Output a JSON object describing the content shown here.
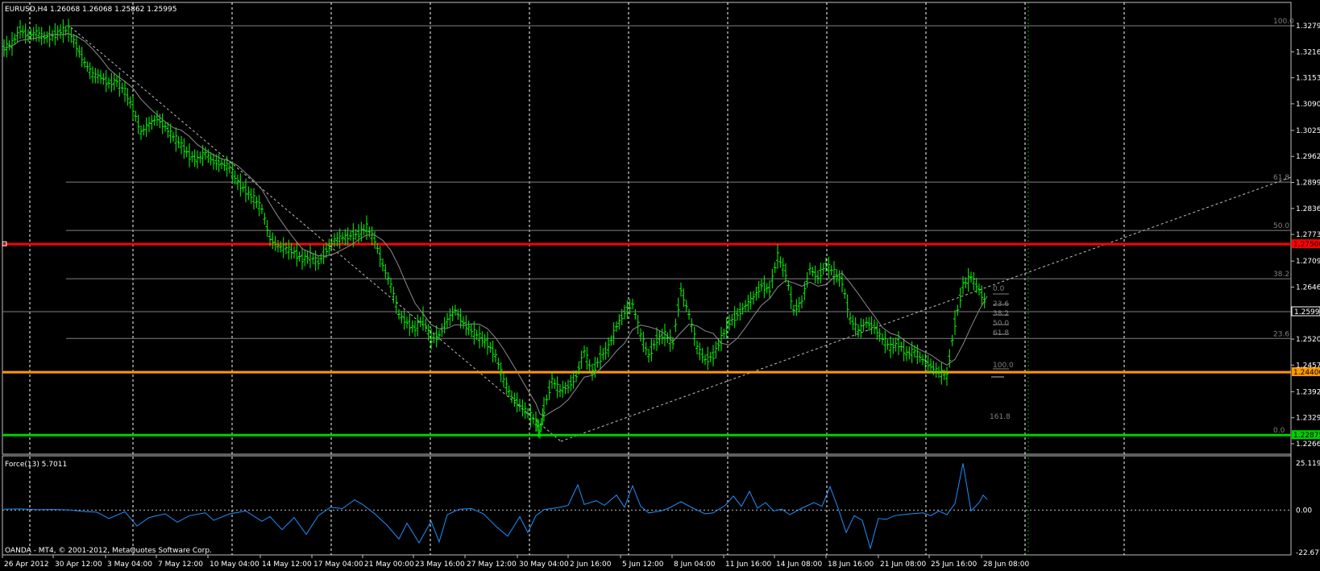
{
  "window": {
    "symbol_header": "EURUSD,H4  1.26068 1.26068 1.25862 1.25995",
    "indicator_header": "Force(13) 5.7011",
    "copyright": "OANDA - MT4, © 2001-2012, MetaQuotes Software Corp."
  },
  "colors": {
    "background": "#000000",
    "candles": "#00ff00",
    "ma_line": "#8c8c8c",
    "red_level": "#ff0000",
    "orange_level": "#ff9900",
    "green_level": "#00d000",
    "force_line": "#1e90ff",
    "grid": "#ffffff",
    "fib": "#7f7f7f"
  },
  "price_axis": {
    "ticks": [
      "1.32790",
      "1.32160",
      "1.31530",
      "1.30900",
      "1.30255",
      "1.29625",
      "1.28995",
      "1.28365",
      "1.27735",
      "1.27090",
      "1.26460",
      "1.25830",
      "1.25200",
      "1.24570",
      "1.23925",
      "1.23295",
      "1.22665"
    ],
    "current_price": "1.25995",
    "levels": [
      {
        "name": "red-level",
        "label": "1.27500",
        "value": 1.275,
        "color": "#ff0000"
      },
      {
        "name": "orange-level",
        "label": "1.24400",
        "value": 1.244,
        "color": "#ff9900"
      },
      {
        "name": "green-level",
        "label": "1.22875",
        "value": 1.22875,
        "color": "#00d000"
      }
    ]
  },
  "force_axis": {
    "ticks": [
      "25.1195",
      "0.00",
      "-22.6774"
    ]
  },
  "time_axis": {
    "labels": [
      "26 Apr 2012",
      "30 Apr 12:00",
      "3 May 04:00",
      "7 May 12:00",
      "10 May 04:00",
      "14 May 12:00",
      "17 May 04:00",
      "21 May 00:00",
      "23 May 16:00",
      "27 May 12:00",
      "30 May 04:00",
      "2 Jun 16:00",
      "5 Jun 12:00",
      "8 Jun 04:00",
      "11 Jun 16:00",
      "14 Jun 08:00",
      "18 Jun 16:00",
      "21 Jun 08:00",
      "25 Jun 16:00",
      "28 Jun 08:00"
    ]
  },
  "fib_big": [
    "100.0",
    "61.8",
    "50.0",
    "38.2",
    "23.6",
    "0.0"
  ],
  "fib_small": [
    "0.0",
    "23.6",
    "38.2",
    "50.0",
    "61.8",
    "100.0",
    "161.8"
  ],
  "chart_data": {
    "type": "line",
    "title": "EURUSD,H4",
    "close_series": [
      [
        0,
        1.3225
      ],
      [
        10,
        1.3235
      ],
      [
        20,
        1.327
      ],
      [
        30,
        1.3255
      ],
      [
        40,
        1.3262
      ],
      [
        50,
        1.325
      ],
      [
        60,
        1.3255
      ],
      [
        70,
        1.3265
      ],
      [
        80,
        1.3268
      ],
      [
        90,
        1.323
      ],
      [
        100,
        1.319
      ],
      [
        110,
        1.316
      ],
      [
        120,
        1.3155
      ],
      [
        130,
        1.314
      ],
      [
        140,
        1.3145
      ],
      [
        150,
        1.312
      ],
      [
        160,
        1.308
      ],
      [
        170,
        1.302
      ],
      [
        180,
        1.304
      ],
      [
        190,
        1.3055
      ],
      [
        200,
        1.3035
      ],
      [
        210,
        1.301
      ],
      [
        220,
        1.299
      ],
      [
        230,
        1.2965
      ],
      [
        240,
        1.2955
      ],
      [
        250,
        1.297
      ],
      [
        260,
        1.295
      ],
      [
        270,
        1.2945
      ],
      [
        280,
        1.2935
      ],
      [
        290,
        1.29
      ],
      [
        300,
        1.288
      ],
      [
        310,
        1.286
      ],
      [
        320,
        1.2835
      ],
      [
        330,
        1.2765
      ],
      [
        340,
        1.2745
      ],
      [
        350,
        1.274
      ],
      [
        360,
        1.273
      ],
      [
        370,
        1.2715
      ],
      [
        380,
        1.272
      ],
      [
        390,
        1.2705
      ],
      [
        400,
        1.2735
      ],
      [
        410,
        1.276
      ],
      [
        420,
        1.2765
      ],
      [
        430,
        1.277
      ],
      [
        440,
        1.2775
      ],
      [
        450,
        1.279
      ],
      [
        460,
        1.276
      ],
      [
        470,
        1.27
      ],
      [
        480,
        1.265
      ],
      [
        490,
        1.258
      ],
      [
        500,
        1.256
      ],
      [
        510,
        1.2545
      ],
      [
        520,
        1.257
      ],
      [
        530,
        1.252
      ],
      [
        540,
        1.253
      ],
      [
        550,
        1.2565
      ],
      [
        560,
        1.259
      ],
      [
        570,
        1.256
      ],
      [
        580,
        1.254
      ],
      [
        590,
        1.2525
      ],
      [
        600,
        1.251
      ],
      [
        610,
        1.248
      ],
      [
        620,
        1.242
      ],
      [
        630,
        1.238
      ],
      [
        640,
        1.236
      ],
      [
        650,
        1.234
      ],
      [
        660,
        1.232
      ],
      [
        665,
        1.2295
      ],
      [
        670,
        1.235
      ],
      [
        680,
        1.242
      ],
      [
        690,
        1.2395
      ],
      [
        700,
        1.2405
      ],
      [
        710,
        1.243
      ],
      [
        720,
        1.249
      ],
      [
        730,
        1.244
      ],
      [
        740,
        1.2475
      ],
      [
        750,
        1.25
      ],
      [
        760,
        1.255
      ],
      [
        770,
        1.2585
      ],
      [
        780,
        1.2605
      ],
      [
        790,
        1.253
      ],
      [
        800,
        1.248
      ],
      [
        810,
        1.252
      ],
      [
        820,
        1.253
      ],
      [
        830,
        1.251
      ],
      [
        840,
        1.264
      ],
      [
        850,
        1.258
      ],
      [
        860,
        1.25
      ],
      [
        870,
        1.247
      ],
      [
        880,
        1.248
      ],
      [
        890,
        1.252
      ],
      [
        900,
        1.256
      ],
      [
        910,
        1.258
      ],
      [
        920,
        1.26
      ],
      [
        930,
        1.262
      ],
      [
        940,
        1.265
      ],
      [
        950,
        1.264
      ],
      [
        960,
        1.272
      ],
      [
        970,
        1.268
      ],
      [
        980,
        1.259
      ],
      [
        990,
        1.261
      ],
      [
        1000,
        1.269
      ],
      [
        1010,
        1.267
      ],
      [
        1020,
        1.27
      ],
      [
        1030,
        1.268
      ],
      [
        1040,
        1.266
      ],
      [
        1050,
        1.257
      ],
      [
        1060,
        1.254
      ],
      [
        1070,
        1.256
      ],
      [
        1080,
        1.255
      ],
      [
        1090,
        1.252
      ],
      [
        1100,
        1.25
      ],
      [
        1110,
        1.251
      ],
      [
        1120,
        1.2485
      ],
      [
        1130,
        1.249
      ],
      [
        1140,
        1.247
      ],
      [
        1150,
        1.2455
      ],
      [
        1160,
        1.244
      ],
      [
        1170,
        1.243
      ],
      [
        1180,
        1.256
      ],
      [
        1190,
        1.265
      ],
      [
        1200,
        1.267
      ],
      [
        1210,
        1.264
      ],
      [
        1220,
        1.26
      ]
    ],
    "force_series": [
      [
        0,
        0.5
      ],
      [
        20,
        0.6
      ],
      [
        40,
        0.2
      ],
      [
        60,
        0.3
      ],
      [
        80,
        0.1
      ],
      [
        100,
        -0.8
      ],
      [
        115,
        -1.1
      ],
      [
        130,
        -4.5
      ],
      [
        150,
        -0.9
      ],
      [
        165,
        -8.5
      ],
      [
        180,
        -4.0
      ],
      [
        200,
        -2.0
      ],
      [
        215,
        -6.5
      ],
      [
        230,
        -3.0
      ],
      [
        250,
        -1.5
      ],
      [
        260,
        -5.5
      ],
      [
        280,
        -2.0
      ],
      [
        300,
        -0.5
      ],
      [
        320,
        -6.0
      ],
      [
        330,
        -3.5
      ],
      [
        345,
        -10.5
      ],
      [
        360,
        -4.0
      ],
      [
        375,
        -13.0
      ],
      [
        390,
        -3.0
      ],
      [
        405,
        1.5
      ],
      [
        420,
        0.8
      ],
      [
        435,
        5.5
      ],
      [
        445,
        3.0
      ],
      [
        460,
        -2.0
      ],
      [
        475,
        -8.0
      ],
      [
        490,
        -15.5
      ],
      [
        500,
        -7.0
      ],
      [
        515,
        -17.5
      ],
      [
        530,
        -6.0
      ],
      [
        540,
        -17.0
      ],
      [
        550,
        -2.5
      ],
      [
        565,
        0.5
      ],
      [
        580,
        0.8
      ],
      [
        595,
        -2.0
      ],
      [
        610,
        -8.5
      ],
      [
        625,
        -14.0
      ],
      [
        640,
        -3.5
      ],
      [
        650,
        -12.0
      ],
      [
        660,
        -3.0
      ],
      [
        670,
        0.2
      ],
      [
        690,
        1.5
      ],
      [
        700,
        2.5
      ],
      [
        712,
        13.5
      ],
      [
        720,
        3.0
      ],
      [
        735,
        5.0
      ],
      [
        745,
        2.5
      ],
      [
        760,
        8.0
      ],
      [
        770,
        1.5
      ],
      [
        780,
        13.0
      ],
      [
        790,
        2.0
      ],
      [
        800,
        -1.5
      ],
      [
        815,
        -0.5
      ],
      [
        825,
        1.0
      ],
      [
        840,
        4.5
      ],
      [
        855,
        1.0
      ],
      [
        870,
        -2.0
      ],
      [
        880,
        -1.5
      ],
      [
        895,
        2.5
      ],
      [
        905,
        7.5
      ],
      [
        915,
        2.0
      ],
      [
        925,
        10.0
      ],
      [
        935,
        1.0
      ],
      [
        945,
        4.0
      ],
      [
        955,
        -0.5
      ],
      [
        965,
        0.5
      ],
      [
        975,
        -2.5
      ],
      [
        990,
        1.0
      ],
      [
        1005,
        4.0
      ],
      [
        1015,
        2.0
      ],
      [
        1025,
        12.5
      ],
      [
        1035,
        1.0
      ],
      [
        1045,
        -12.0
      ],
      [
        1055,
        -3.0
      ],
      [
        1065,
        -5.5
      ],
      [
        1075,
        -20.5
      ],
      [
        1085,
        -4.5
      ],
      [
        1095,
        -5.0
      ],
      [
        1105,
        -3.0
      ],
      [
        1115,
        -2.5
      ],
      [
        1125,
        -2.0
      ],
      [
        1140,
        -1.5
      ],
      [
        1150,
        -3.0
      ],
      [
        1160,
        -0.5
      ],
      [
        1170,
        -2.5
      ],
      [
        1180,
        3.5
      ],
      [
        1190,
        25.0
      ],
      [
        1200,
        -0.5
      ],
      [
        1210,
        4.0
      ],
      [
        1215,
        8.0
      ],
      [
        1220,
        5.7
      ]
    ]
  }
}
